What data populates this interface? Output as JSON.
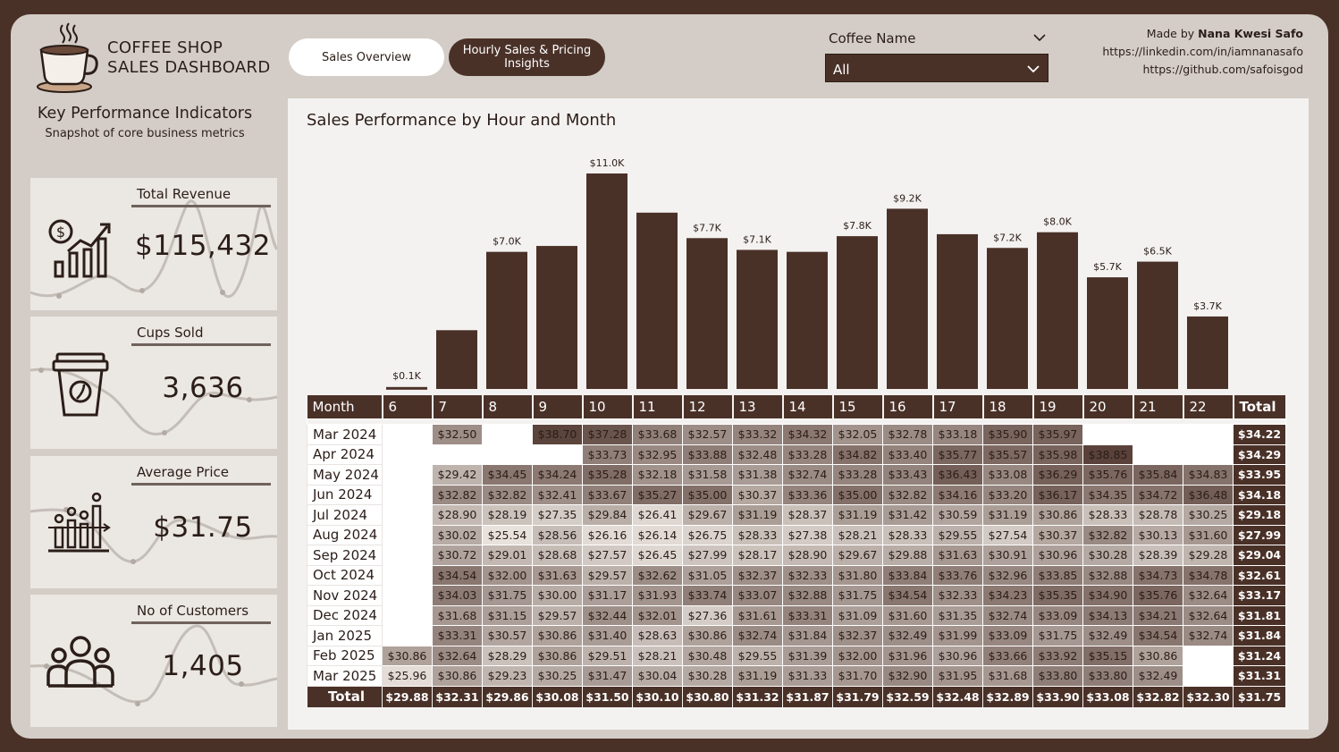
{
  "header": {
    "title_line1": "COFFEE SHOP",
    "title_line2": "SALES DASHBOARD",
    "logo_icon": "coffee-cup-icon"
  },
  "tabs": [
    {
      "label": "Sales Overview",
      "active": false
    },
    {
      "label": "Hourly Sales & Pricing Insights",
      "active": true
    }
  ],
  "slicer": {
    "label": "Coffee Name",
    "value": "All"
  },
  "credits": {
    "made_by_prefix": "Made by",
    "author": "Nana Kwesi Safo",
    "linkedin": "https://linkedin.com/in/iamnanasafo",
    "github": "https://github.com/safoisgod"
  },
  "kpi": {
    "heading": "Key Performance Indicators",
    "subheading": "Snapshot of core business metrics",
    "cards": [
      {
        "label": "Total Revenue",
        "value": "$115,432",
        "icon": "revenue-chart-icon"
      },
      {
        "label": "Cups Sold",
        "value": "3,636",
        "icon": "coffee-cup-takeaway-icon"
      },
      {
        "label": "Average Price",
        "value": "$31.75",
        "icon": "price-bar-chart-icon"
      },
      {
        "label": "No of Customers",
        "value": "1,405",
        "icon": "customers-group-icon"
      }
    ]
  },
  "colors": {
    "primary": "#4a3128",
    "background": "#d4cdc7",
    "panel": "#f4f2f0",
    "card": "#ebe7e3"
  },
  "chart_data": {
    "type": "bar",
    "title": "Sales Performance by Hour and Month",
    "categories": [
      "6",
      "7",
      "8",
      "9",
      "10",
      "11",
      "12",
      "13",
      "14",
      "15",
      "16",
      "17",
      "18",
      "19",
      "20",
      "21",
      "22"
    ],
    "values": [
      100,
      3000,
      7000,
      7300,
      11000,
      9000,
      7700,
      7100,
      7000,
      7800,
      9200,
      7900,
      7200,
      8000,
      5700,
      6500,
      3700
    ],
    "labels": [
      "$0.1K",
      "",
      "$7.0K",
      "",
      "$11.0K",
      "",
      "$7.7K",
      "$7.1K",
      "",
      "$7.8K",
      "$9.2K",
      "",
      "$7.2K",
      "$8.0K",
      "$5.7K",
      "$6.5K",
      "$3.7K"
    ],
    "ylim": [
      0,
      11000
    ],
    "xlabel": "",
    "ylabel": ""
  },
  "matrix": {
    "corner_label": "Month",
    "total_label": "Total",
    "hours": [
      "6",
      "7",
      "8",
      "9",
      "10",
      "11",
      "12",
      "13",
      "14",
      "15",
      "16",
      "17",
      "18",
      "19",
      "20",
      "21",
      "22"
    ],
    "rows": [
      {
        "month": "Mar 2024",
        "cells": [
          "",
          "$32.50",
          "",
          "$38.70",
          "$37.28",
          "$33.68",
          "$32.57",
          "$33.32",
          "$34.32",
          "$32.05",
          "$32.78",
          "$33.18",
          "$35.90",
          "$35.97",
          "",
          "",
          ""
        ],
        "total": "$34.22"
      },
      {
        "month": "Apr 2024",
        "cells": [
          "",
          "",
          "",
          "",
          "$33.73",
          "$32.95",
          "$33.88",
          "$32.48",
          "$33.28",
          "$34.82",
          "$33.40",
          "$35.77",
          "$35.57",
          "$35.98",
          "$38.85",
          "",
          ""
        ],
        "total": "$34.29"
      },
      {
        "month": "May 2024",
        "cells": [
          "",
          "$29.42",
          "$34.45",
          "$34.24",
          "$35.28",
          "$32.18",
          "$31.58",
          "$31.38",
          "$32.74",
          "$33.28",
          "$33.43",
          "$36.43",
          "$33.08",
          "$36.29",
          "$35.76",
          "$35.84",
          "$34.83"
        ],
        "total": "$33.95"
      },
      {
        "month": "Jun 2024",
        "cells": [
          "",
          "$32.82",
          "$32.82",
          "$32.41",
          "$33.67",
          "$35.27",
          "$35.00",
          "$30.37",
          "$33.36",
          "$35.00",
          "$32.82",
          "$34.16",
          "$33.20",
          "$36.17",
          "$34.35",
          "$34.72",
          "$36.48"
        ],
        "total": "$34.18"
      },
      {
        "month": "Jul 2024",
        "cells": [
          "",
          "$28.90",
          "$28.19",
          "$27.35",
          "$29.84",
          "$26.41",
          "$29.67",
          "$31.19",
          "$28.37",
          "$31.19",
          "$31.42",
          "$30.59",
          "$31.19",
          "$30.86",
          "$28.33",
          "$28.78",
          "$30.25"
        ],
        "total": "$29.18"
      },
      {
        "month": "Aug 2024",
        "cells": [
          "",
          "$30.02",
          "$25.54",
          "$28.56",
          "$26.16",
          "$26.14",
          "$26.75",
          "$28.33",
          "$27.38",
          "$28.21",
          "$28.33",
          "$29.55",
          "$27.54",
          "$30.37",
          "$32.82",
          "$30.13",
          "$31.60"
        ],
        "total": "$27.99"
      },
      {
        "month": "Sep 2024",
        "cells": [
          "",
          "$30.72",
          "$29.01",
          "$28.68",
          "$27.57",
          "$26.45",
          "$27.99",
          "$28.17",
          "$28.90",
          "$29.67",
          "$29.88",
          "$31.63",
          "$30.91",
          "$30.96",
          "$30.28",
          "$28.39",
          "$29.28"
        ],
        "total": "$29.04"
      },
      {
        "month": "Oct 2024",
        "cells": [
          "",
          "$34.54",
          "$32.00",
          "$31.63",
          "$29.57",
          "$32.62",
          "$31.05",
          "$32.37",
          "$32.33",
          "$31.80",
          "$33.84",
          "$33.76",
          "$32.96",
          "$33.85",
          "$32.88",
          "$34.73",
          "$34.78"
        ],
        "total": "$32.61"
      },
      {
        "month": "Nov 2024",
        "cells": [
          "",
          "$34.03",
          "$31.75",
          "$30.00",
          "$31.17",
          "$31.93",
          "$33.74",
          "$33.07",
          "$32.88",
          "$31.75",
          "$34.54",
          "$32.33",
          "$34.23",
          "$35.35",
          "$34.90",
          "$35.76",
          "$32.64"
        ],
        "total": "$33.17"
      },
      {
        "month": "Dec 2024",
        "cells": [
          "",
          "$31.68",
          "$31.15",
          "$29.57",
          "$32.44",
          "$32.01",
          "$27.36",
          "$31.61",
          "$33.31",
          "$31.09",
          "$31.60",
          "$31.35",
          "$32.74",
          "$33.09",
          "$34.13",
          "$34.21",
          "$32.64"
        ],
        "total": "$31.81"
      },
      {
        "month": "Jan 2025",
        "cells": [
          "",
          "$33.31",
          "$30.57",
          "$30.86",
          "$31.40",
          "$28.63",
          "$30.86",
          "$32.74",
          "$31.84",
          "$32.37",
          "$32.49",
          "$31.99",
          "$33.09",
          "$31.75",
          "$32.49",
          "$34.54",
          "$32.74"
        ],
        "total": "$31.84"
      },
      {
        "month": "Feb 2025",
        "cells": [
          "$30.86",
          "$32.64",
          "$28.29",
          "$30.86",
          "$29.51",
          "$28.21",
          "$30.48",
          "$29.55",
          "$31.39",
          "$32.00",
          "$31.96",
          "$30.96",
          "$33.66",
          "$33.92",
          "$35.15",
          "$30.86",
          ""
        ],
        "total": "$31.24"
      },
      {
        "month": "Mar 2025",
        "cells": [
          "$25.96",
          "$30.86",
          "$29.23",
          "$30.25",
          "$31.47",
          "$30.04",
          "$30.28",
          "$31.19",
          "$31.33",
          "$31.70",
          "$32.90",
          "$31.95",
          "$31.68",
          "$33.80",
          "$33.80",
          "$32.49",
          ""
        ],
        "total": "$31.31"
      }
    ],
    "totals": [
      "$29.88",
      "$32.31",
      "$29.86",
      "$30.08",
      "$31.50",
      "$30.10",
      "$30.80",
      "$31.32",
      "$31.87",
      "$31.79",
      "$32.59",
      "$32.48",
      "$32.89",
      "$33.90",
      "$33.08",
      "$32.82",
      "$32.30"
    ],
    "grand_total": "$31.75"
  }
}
